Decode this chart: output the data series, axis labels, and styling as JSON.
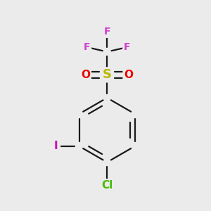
{
  "background_color": "#ebebeb",
  "figsize": [
    3.0,
    3.0
  ],
  "dpi": 100,
  "atom_colors": {
    "C": "#1a1a1a",
    "F": "#d040d0",
    "S": "#b8b800",
    "O": "#ee0000",
    "I": "#cc00bb",
    "Cl": "#44bb00"
  },
  "bond_color": "#1a1a1a",
  "bond_width": 1.6,
  "font_size_atom": 10.5
}
